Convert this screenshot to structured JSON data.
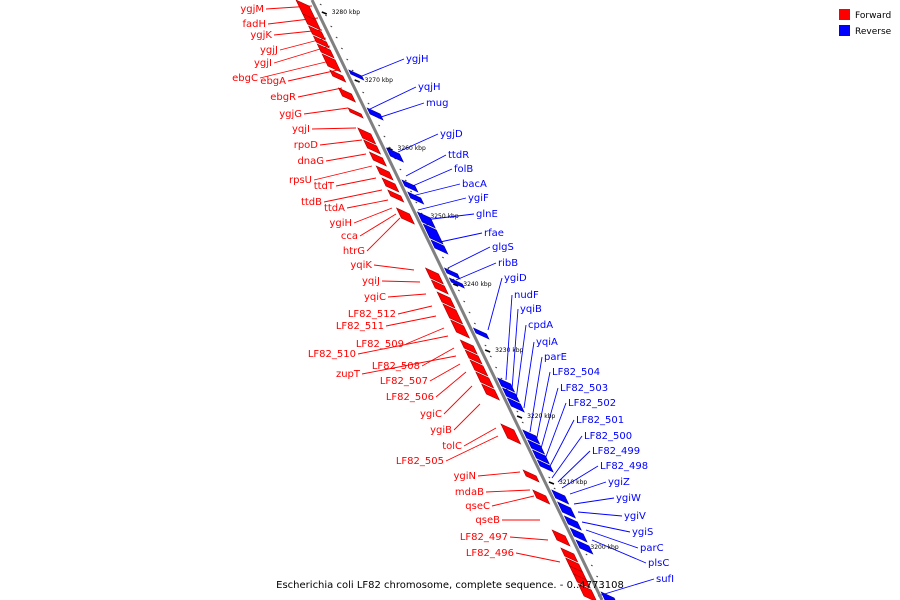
{
  "title": "Escherichia coli LF82 chromosome, complete sequence. - 0..4773108",
  "legend": [
    {
      "label": "Forward",
      "color": "#ff0000"
    },
    {
      "label": "Reverse",
      "color": "#0000ff"
    }
  ],
  "colors": {
    "forward": "#ff0000",
    "reverse": "#0000ff",
    "backbone": "#808080"
  },
  "ticks": [
    "3280 kbp",
    "3270 kbp",
    "3260 kbp",
    "3250 kbp",
    "3240 kbp",
    "3230 kbp",
    "3220 kbp",
    "3210 kbp",
    "3200 kbp"
  ],
  "forward_genes": [
    "ygjM",
    "fadH",
    "ygjK",
    "ygjJ",
    "ygjI",
    "ebgC",
    "ebgA",
    "ebgR",
    "ygjG",
    "yqjI",
    "rpoD",
    "dnaG",
    "rpsU",
    "ttdT",
    "ttdB",
    "ttdA",
    "ygiH",
    "cca",
    "htrG",
    "yqiK",
    "yqiJ",
    "yqiC",
    "LF82_512",
    "LF82_511",
    "LF82_509",
    "LF82_510",
    "LF82_508",
    "zupT",
    "LF82_507",
    "LF82_506",
    "ygiC",
    "ygiB",
    "tolC",
    "LF82_505",
    "ygiN",
    "mdaB",
    "qseC",
    "qseB",
    "LF82_497",
    "LF82_496"
  ],
  "reverse_genes": [
    "ygjH",
    "yqjH",
    "mug",
    "ygjD",
    "ttdR",
    "folB",
    "bacA",
    "ygiF",
    "glnE",
    "rfae",
    "glgS",
    "ribB",
    "ygiD",
    "nudF",
    "yqiB",
    "cpdA",
    "yqiA",
    "parE",
    "LF82_504",
    "LF82_503",
    "LF82_502",
    "LF82_501",
    "LF82_500",
    "LF82_499",
    "LF82_498",
    "ygiZ",
    "ygiW",
    "ygiV",
    "ygiS",
    "parC",
    "plsC",
    "sufI"
  ]
}
